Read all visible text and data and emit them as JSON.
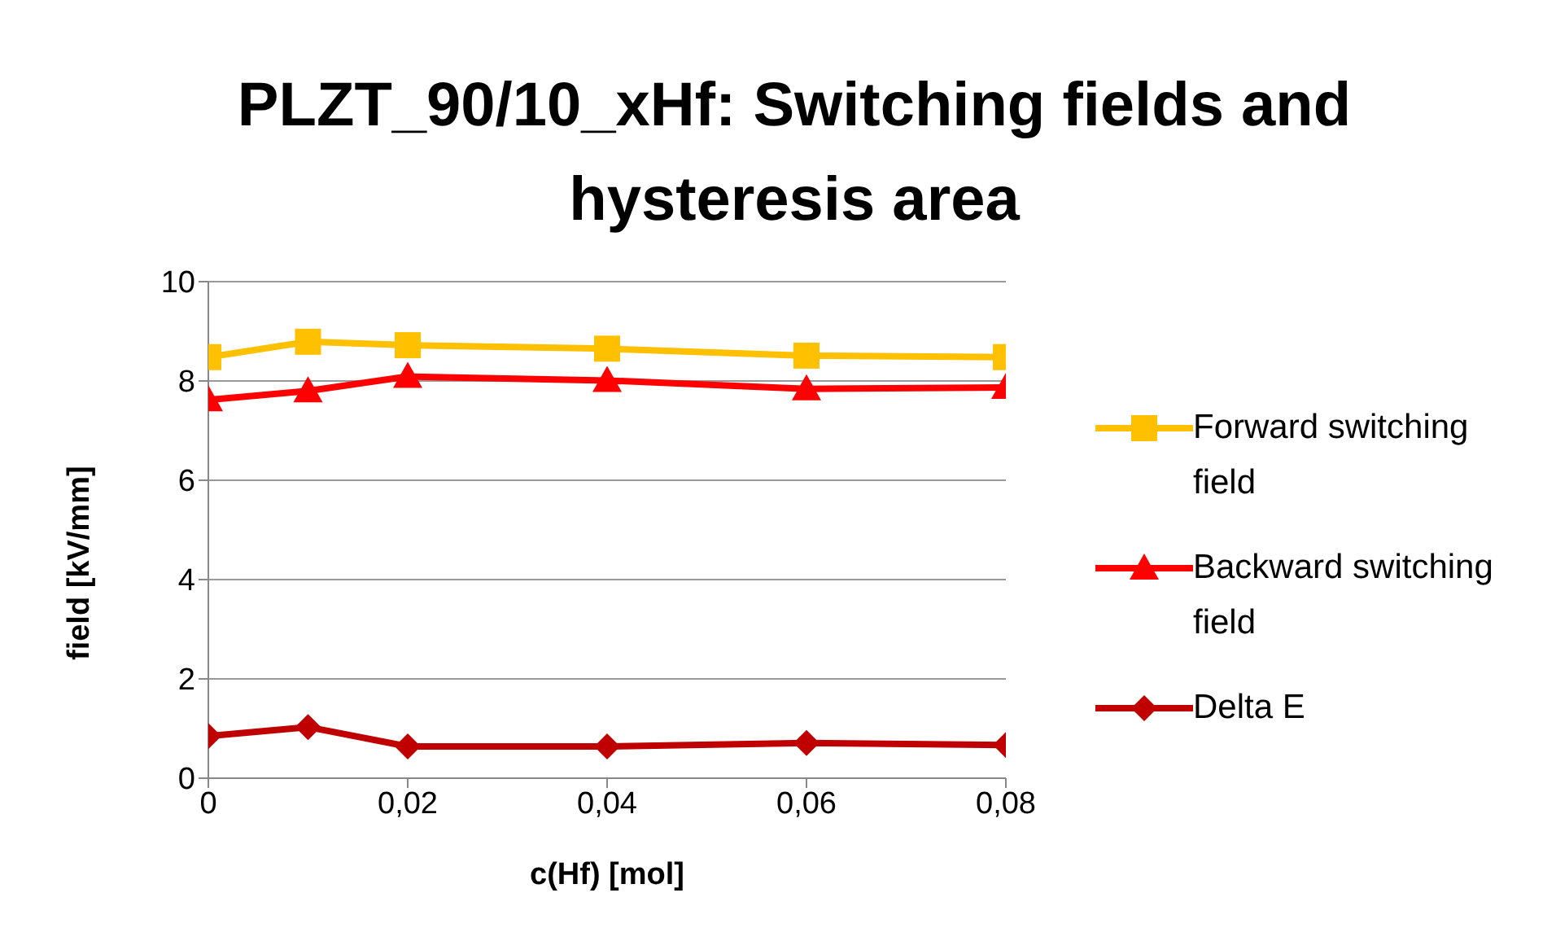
{
  "chart_data": {
    "type": "line",
    "title": "PLZT_90/10_xHf: Switching fields and hysteresis area",
    "xlabel": "c(Hf) [mol]",
    "ylabel": "field [kV/mm]",
    "x": [
      0,
      0.01,
      0.02,
      0.04,
      0.06,
      0.08
    ],
    "xlim": [
      0,
      0.08
    ],
    "xticks": [
      0,
      {
        "value": 0.02,
        "label": "0,02"
      },
      {
        "value": 0.04,
        "label": "0,04"
      },
      {
        "value": 0.06,
        "label": "0,06"
      },
      {
        "value": 0.08,
        "label": "0,08"
      }
    ],
    "ylim": [
      0,
      10
    ],
    "yticks": [
      0,
      2,
      4,
      6,
      8,
      10
    ],
    "grid": "y",
    "legend": "right",
    "series": [
      {
        "name": "Forward switching field",
        "color": "#ffc000",
        "marker": "square",
        "values": [
          8.48,
          8.79,
          8.72,
          8.65,
          8.51,
          8.48
        ]
      },
      {
        "name": "Backward switching field",
        "color": "#ff0000",
        "marker": "triangle",
        "values": [
          7.62,
          7.8,
          8.09,
          8.01,
          7.84,
          7.87
        ]
      },
      {
        "name": "Delta E",
        "color": "#c00000",
        "marker": "diamond",
        "values": [
          0.85,
          1.03,
          0.64,
          0.64,
          0.71,
          0.67
        ]
      }
    ]
  }
}
